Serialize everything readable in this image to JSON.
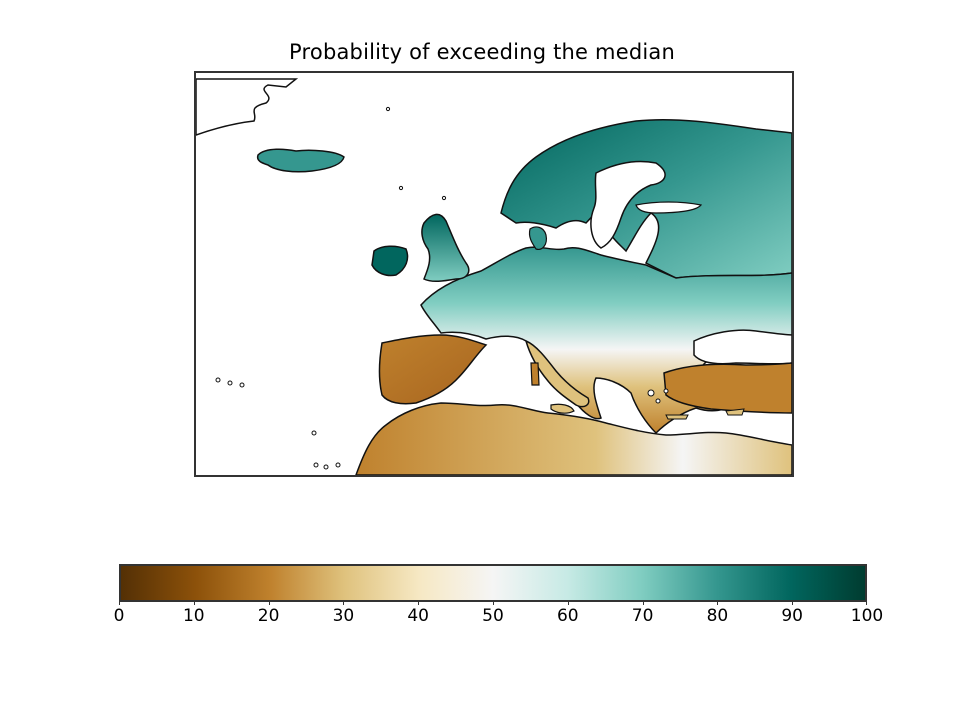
{
  "title": "Probability of exceeding the median",
  "colors": {
    "frame": "#333333",
    "coast": "#111111",
    "ocean": "#ffffff",
    "dry": "#b8722a",
    "mid": "#f4efe2",
    "wet": "#1e9a8e"
  },
  "colorbar": {
    "min": 0,
    "max": 100,
    "ticks": [
      "0",
      "10",
      "20",
      "30",
      "40",
      "50",
      "60",
      "70",
      "80",
      "90",
      "100"
    ],
    "colormap": "BrBG",
    "stops": [
      {
        "value": 0,
        "color": "#543005"
      },
      {
        "value": 10,
        "color": "#8c510a"
      },
      {
        "value": 20,
        "color": "#bf812d"
      },
      {
        "value": 30,
        "color": "#dfc27d"
      },
      {
        "value": 40,
        "color": "#f6e8c3"
      },
      {
        "value": 50,
        "color": "#f5f5f5"
      },
      {
        "value": 60,
        "color": "#c7eae5"
      },
      {
        "value": 70,
        "color": "#80cdc1"
      },
      {
        "value": 80,
        "color": "#35978f"
      },
      {
        "value": 90,
        "color": "#01665e"
      },
      {
        "value": 100,
        "color": "#003c30"
      }
    ]
  }
}
